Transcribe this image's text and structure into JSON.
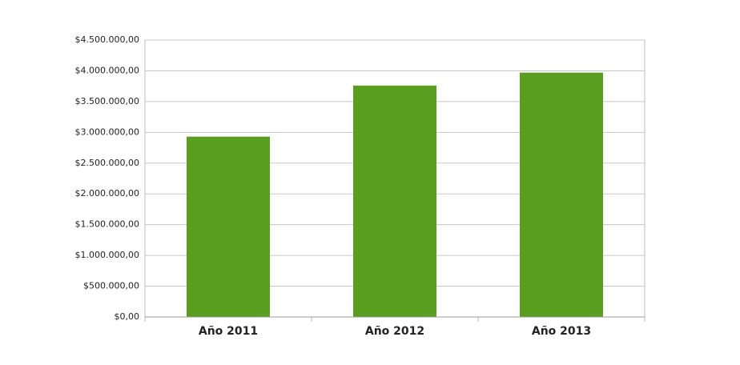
{
  "chart_data": {
    "type": "bar",
    "categories": [
      "Año 2011",
      "Año 2012",
      "Año 2013"
    ],
    "values": [
      2930000,
      3760000,
      3970000
    ],
    "color": "#5a9e1f",
    "ylim": [
      0,
      4500000
    ],
    "yticks": [
      {
        "value": 0,
        "label": "$0,00"
      },
      {
        "value": 500000,
        "label": "$500.000,00"
      },
      {
        "value": 1000000,
        "label": "$1.000.000,00"
      },
      {
        "value": 1500000,
        "label": "$1.500.000,00"
      },
      {
        "value": 2000000,
        "label": "$2.000.000,00"
      },
      {
        "value": 2500000,
        "label": "$2.500.000,00"
      },
      {
        "value": 3000000,
        "label": "$3.000.000,00"
      },
      {
        "value": 3500000,
        "label": "$3.500.000,00"
      },
      {
        "value": 4000000,
        "label": "$4.000.000,00"
      },
      {
        "value": 4500000,
        "label": "$4.500.000,00"
      }
    ],
    "grid": true
  }
}
